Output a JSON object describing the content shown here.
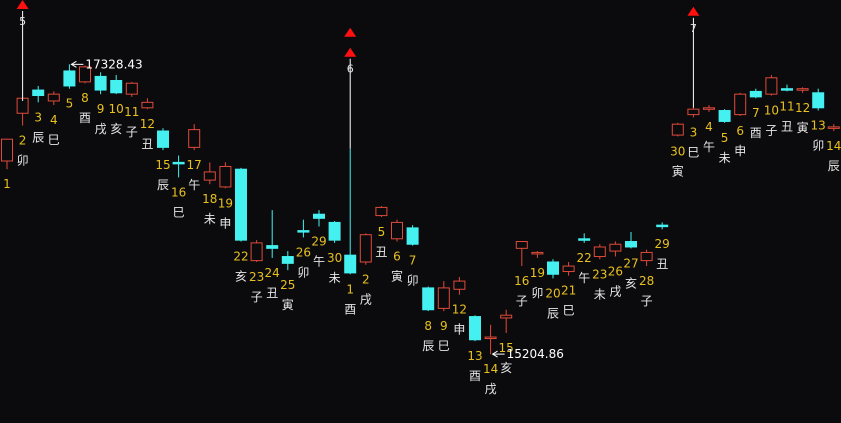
{
  "chart_data": {
    "type": "candlestick",
    "colors": {
      "background": "#0b0b0d",
      "up": "#e04a3a",
      "down": "#44f0f0",
      "day_number": "#e8c020",
      "branch_label": "#e6e6e6",
      "marker": "#ff1010",
      "annotation": "#ffffff"
    },
    "ylim": [
      14700,
      17800
    ],
    "candles": [
      {
        "day": "1",
        "branch": "",
        "dir": "up",
        "open": 16620,
        "high": 16760,
        "low": 16560,
        "close": 16780
      },
      {
        "day": "2",
        "branch": "卯",
        "dir": "up",
        "open": 16970,
        "high": 17060,
        "low": 16880,
        "close": 17080
      },
      {
        "day": "3",
        "branch": "辰",
        "dir": "down",
        "open": 17140,
        "high": 17170,
        "low": 17050,
        "close": 17100
      },
      {
        "day": "4",
        "branch": "巳",
        "dir": "up",
        "open": 17060,
        "high": 17130,
        "low": 17030,
        "close": 17110
      },
      {
        "day": "5",
        "branch": "",
        "dir": "down",
        "open": 17280,
        "high": 17328.43,
        "low": 17150,
        "close": 17170
      },
      {
        "day": "8",
        "branch": "酉",
        "dir": "up",
        "open": 17200,
        "high": 17320,
        "low": 17190,
        "close": 17310
      },
      {
        "day": "9",
        "branch": "戌",
        "dir": "down",
        "open": 17240,
        "high": 17270,
        "low": 17110,
        "close": 17140
      },
      {
        "day": "10",
        "branch": "亥",
        "dir": "down",
        "open": 17210,
        "high": 17250,
        "low": 17110,
        "close": 17120
      },
      {
        "day": "11",
        "branch": "子",
        "dir": "up",
        "open": 17110,
        "high": 17200,
        "low": 17090,
        "close": 17190
      },
      {
        "day": "12",
        "branch": "丑",
        "dir": "up",
        "open": 17010,
        "high": 17080,
        "low": 17000,
        "close": 17050
      },
      {
        "day": "15",
        "branch": "辰",
        "dir": "down",
        "open": 16840,
        "high": 16860,
        "low": 16700,
        "close": 16720
      },
      {
        "day": "16",
        "branch": "巳",
        "dir": "down",
        "open": 16610,
        "high": 16660,
        "low": 16500,
        "close": 16600
      },
      {
        "day": "17",
        "branch": "午",
        "dir": "up",
        "open": 16720,
        "high": 16890,
        "low": 16700,
        "close": 16850
      },
      {
        "day": "18",
        "branch": "未",
        "dir": "up",
        "open": 16480,
        "high": 16610,
        "low": 16450,
        "close": 16540
      },
      {
        "day": "19",
        "branch": "申",
        "dir": "up",
        "open": 16430,
        "high": 16610,
        "low": 16420,
        "close": 16580
      },
      {
        "day": "22",
        "branch": "亥",
        "dir": "down",
        "open": 16560,
        "high": 16570,
        "low": 16030,
        "close": 16040
      },
      {
        "day": "23",
        "branch": "子",
        "dir": "up",
        "open": 15890,
        "high": 16040,
        "low": 15880,
        "close": 16020
      },
      {
        "day": "24",
        "branch": "丑",
        "dir": "down",
        "open": 16000,
        "high": 16260,
        "low": 15910,
        "close": 15980
      },
      {
        "day": "25",
        "branch": "寅",
        "dir": "down",
        "open": 15920,
        "high": 15960,
        "low": 15820,
        "close": 15870
      },
      {
        "day": "26",
        "branch": "卯",
        "dir": "down",
        "open": 16110,
        "high": 16190,
        "low": 16060,
        "close": 16100
      },
      {
        "day": "29",
        "branch": "午",
        "dir": "down",
        "open": 16230,
        "high": 16260,
        "low": 16140,
        "close": 16200
      },
      {
        "day": "30",
        "branch": "未",
        "dir": "down",
        "open": 16170,
        "high": 16180,
        "low": 16020,
        "close": 16040
      },
      {
        "day": "1",
        "branch": "酉",
        "dir": "down",
        "open": 15930,
        "high": 16710,
        "low": 15790,
        "close": 15800
      },
      {
        "day": "2",
        "branch": "戌",
        "dir": "up",
        "open": 15880,
        "high": 16090,
        "low": 15860,
        "close": 16080
      },
      {
        "day": "5",
        "branch": "丑",
        "dir": "up",
        "open": 16220,
        "high": 16290,
        "low": 16210,
        "close": 16280
      },
      {
        "day": "6",
        "branch": "寅",
        "dir": "up",
        "open": 16050,
        "high": 16190,
        "low": 16030,
        "close": 16170
      },
      {
        "day": "7",
        "branch": "卯",
        "dir": "down",
        "open": 16130,
        "high": 16150,
        "low": 16000,
        "close": 16010
      },
      {
        "day": "8",
        "branch": "辰",
        "dir": "down",
        "open": 15690,
        "high": 15700,
        "low": 15520,
        "close": 15530
      },
      {
        "day": "9",
        "branch": "巳",
        "dir": "up",
        "open": 15540,
        "high": 15740,
        "low": 15520,
        "close": 15690
      },
      {
        "day": "12",
        "branch": "申",
        "dir": "up",
        "open": 15680,
        "high": 15770,
        "low": 15640,
        "close": 15740
      },
      {
        "day": "13",
        "branch": "酉",
        "dir": "down",
        "open": 15480,
        "high": 15490,
        "low": 15300,
        "close": 15310
      },
      {
        "day": "14",
        "branch": "戌",
        "dir": "up",
        "open": 15320,
        "high": 15420,
        "low": 15204.86,
        "close": 15330
      },
      {
        "day": "15",
        "branch": "亥",
        "dir": "up",
        "open": 15470,
        "high": 15530,
        "low": 15360,
        "close": 15490
      },
      {
        "day": "16",
        "branch": "子",
        "dir": "up",
        "open": 15980,
        "high": 16000,
        "low": 15850,
        "close": 16030
      },
      {
        "day": "19",
        "branch": "卯",
        "dir": "up",
        "open": 15940,
        "high": 15960,
        "low": 15910,
        "close": 15950
      },
      {
        "day": "20",
        "branch": "辰",
        "dir": "down",
        "open": 15880,
        "high": 15900,
        "low": 15760,
        "close": 15790
      },
      {
        "day": "21",
        "branch": "巳",
        "dir": "up",
        "open": 15810,
        "high": 15880,
        "low": 15780,
        "close": 15850
      },
      {
        "day": "22",
        "branch": "午",
        "dir": "down",
        "open": 16050,
        "high": 16090,
        "low": 16020,
        "close": 16040
      },
      {
        "day": "23",
        "branch": "未",
        "dir": "up",
        "open": 15920,
        "high": 16010,
        "low": 15900,
        "close": 15990
      },
      {
        "day": "26",
        "branch": "戌",
        "dir": "up",
        "open": 15960,
        "high": 16030,
        "low": 15920,
        "close": 16010
      },
      {
        "day": "27",
        "branch": "亥",
        "dir": "down",
        "open": 16030,
        "high": 16100,
        "low": 15980,
        "close": 15990
      },
      {
        "day": "28",
        "branch": "子",
        "dir": "up",
        "open": 15890,
        "high": 15970,
        "low": 15850,
        "close": 15950
      },
      {
        "day": "29",
        "branch": "丑",
        "dir": "down",
        "open": 16150,
        "high": 16170,
        "low": 16120,
        "close": 16140
      },
      {
        "day": "30",
        "branch": "寅",
        "dir": "up",
        "open": 16810,
        "high": 16900,
        "low": 16800,
        "close": 16890
      },
      {
        "day": "3",
        "branch": "巳",
        "dir": "up",
        "open": 16960,
        "high": 17010,
        "low": 16940,
        "close": 17000
      },
      {
        "day": "4",
        "branch": "午",
        "dir": "up",
        "open": 17000,
        "high": 17030,
        "low": 16980,
        "close": 17010
      },
      {
        "day": "5",
        "branch": "未",
        "dir": "down",
        "open": 16990,
        "high": 17000,
        "low": 16900,
        "close": 16910
      },
      {
        "day": "6",
        "branch": "申",
        "dir": "up",
        "open": 16960,
        "high": 17120,
        "low": 16950,
        "close": 17110
      },
      {
        "day": "7",
        "branch": "酉",
        "dir": "down",
        "open": 17130,
        "high": 17150,
        "low": 17080,
        "close": 17090
      },
      {
        "day": "10",
        "branch": "子",
        "dir": "up",
        "open": 17110,
        "high": 17250,
        "low": 17100,
        "close": 17230
      },
      {
        "day": "11",
        "branch": "丑",
        "dir": "down",
        "open": 17150,
        "high": 17180,
        "low": 17130,
        "close": 17140
      },
      {
        "day": "12",
        "branch": "寅",
        "dir": "up",
        "open": 17150,
        "high": 17160,
        "low": 17120,
        "close": 17140
      },
      {
        "day": "13",
        "branch": "卯",
        "dir": "down",
        "open": 17120,
        "high": 17150,
        "low": 16990,
        "close": 17010
      },
      {
        "day": "14",
        "branch": "辰",
        "dir": "up",
        "open": 16860,
        "high": 16890,
        "low": 16840,
        "close": 16870
      }
    ],
    "annotations": [
      {
        "text": "17328.43",
        "candle": 4,
        "anchor": "high"
      },
      {
        "text": "15204.86",
        "candle": 31,
        "anchor": "low"
      }
    ],
    "markers": [
      {
        "candle": 1,
        "number": "5"
      },
      {
        "candle": 22,
        "number": "6"
      },
      {
        "candle": 44,
        "number": "7"
      }
    ]
  }
}
